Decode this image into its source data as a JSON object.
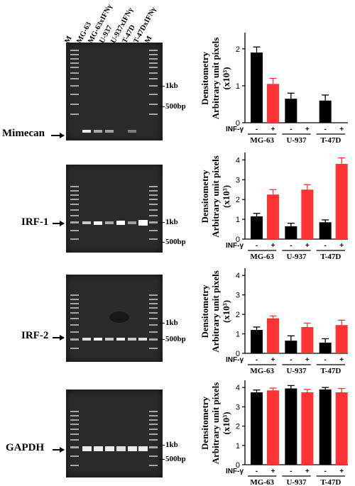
{
  "lanes": [
    "M",
    "MG-63",
    "MG-63xIFNγ",
    "U-937",
    "U-937xIFNγ",
    "T-47D",
    "T-47DxIFNγ",
    "M"
  ],
  "gels": [
    {
      "gene": "Mimecan",
      "markers": [
        "1kb",
        "500bp"
      ]
    },
    {
      "gene": "IRF-1",
      "markers": [
        "1kb",
        "500bp"
      ]
    },
    {
      "gene": "IRF-2",
      "markers": [
        "1kb",
        "500bp"
      ]
    },
    {
      "gene": "GAPDH",
      "markers": [
        "1kb",
        "500bp"
      ]
    }
  ],
  "colors": {
    "control": "#000000",
    "treated": "#ff3333",
    "gel_bg": "#2b2b2b"
  },
  "chart_data": [
    {
      "type": "bar",
      "ylabel": [
        "Densitometry",
        "Arbitrary unit pixels",
        "(x10³)"
      ],
      "treatment_label": "INF-γ",
      "sign_labels": [
        "-",
        "+"
      ],
      "groups": [
        "MG-63",
        "U-937",
        "T-47D"
      ],
      "yticks": [
        0,
        1,
        2
      ],
      "ylim": [
        0,
        2.4
      ],
      "series": [
        {
          "name": "-",
          "values": [
            1.9,
            0.65,
            0.6
          ],
          "errors": [
            0.15,
            0.15,
            0.15
          ]
        },
        {
          "name": "+",
          "values": [
            1.05,
            0,
            0
          ],
          "errors": [
            0.15,
            0,
            0
          ]
        }
      ]
    },
    {
      "type": "bar",
      "ylabel": [
        "Densitometry",
        "Arbitrary unit pixels",
        "(x10³)"
      ],
      "treatment_label": "INF-γ",
      "sign_labels": [
        "-",
        "+"
      ],
      "groups": [
        "MG-63",
        "U-937",
        "T-47D"
      ],
      "yticks": [
        0,
        1,
        2,
        3,
        4
      ],
      "ylim": [
        0,
        4.3
      ],
      "series": [
        {
          "name": "-",
          "values": [
            1.15,
            0.65,
            0.85
          ],
          "errors": [
            0.15,
            0.15,
            0.12
          ]
        },
        {
          "name": "+",
          "values": [
            2.25,
            2.5,
            3.8
          ],
          "errors": [
            0.25,
            0.25,
            0.3
          ]
        }
      ]
    },
    {
      "type": "bar",
      "ylabel": [
        "Densitometry",
        "Arbitrary unit pixels",
        "(x10³)"
      ],
      "treatment_label": "INF-γ",
      "sign_labels": [
        "-",
        "+"
      ],
      "groups": [
        "MG-63",
        "U-937",
        "T-47D"
      ],
      "yticks": [
        0,
        1,
        2,
        3,
        4
      ],
      "ylim": [
        0,
        4.3
      ],
      "series": [
        {
          "name": "-",
          "values": [
            1.2,
            0.65,
            0.55
          ],
          "errors": [
            0.15,
            0.25,
            0.2
          ]
        },
        {
          "name": "+",
          "values": [
            1.8,
            1.35,
            1.45
          ],
          "errors": [
            0.12,
            0.2,
            0.25
          ]
        }
      ]
    },
    {
      "type": "bar",
      "ylabel": [
        "Densitometry",
        "Arbitrary unit pixels",
        "(x10³)"
      ],
      "treatment_label": "INF-γ",
      "sign_labels": [
        "-",
        "+"
      ],
      "groups": [
        "MG-63",
        "U-937",
        "T-47D"
      ],
      "yticks": [
        0,
        1,
        2,
        3,
        4
      ],
      "ylim": [
        0,
        4.3
      ],
      "series": [
        {
          "name": "-",
          "values": [
            3.75,
            3.95,
            3.9
          ],
          "errors": [
            0.12,
            0.15,
            0.1
          ]
        },
        {
          "name": "+",
          "values": [
            3.85,
            3.75,
            3.75
          ],
          "errors": [
            0.12,
            0.15,
            0.2
          ]
        }
      ]
    }
  ]
}
